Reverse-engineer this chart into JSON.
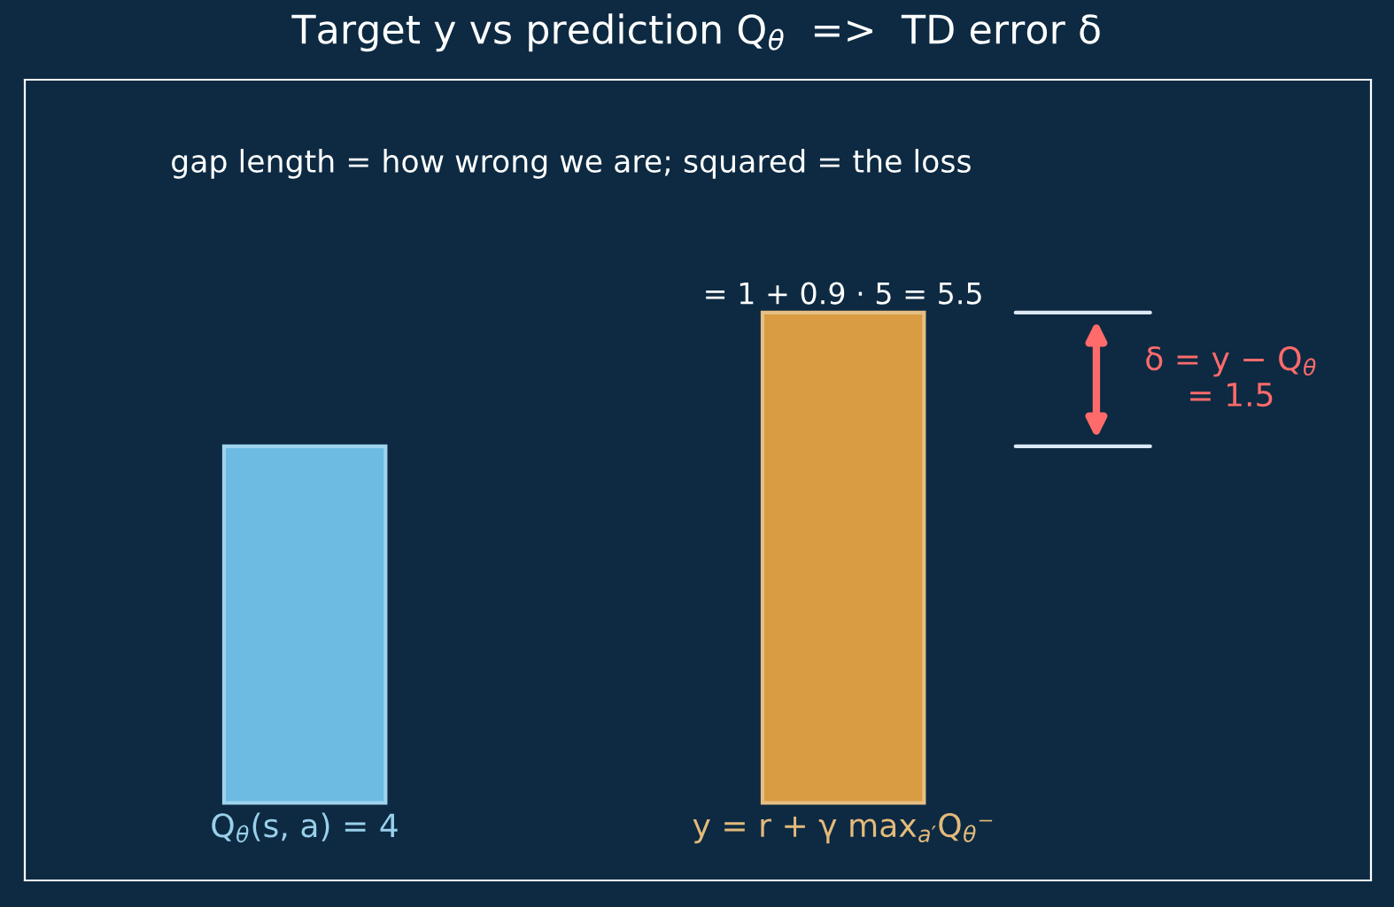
{
  "chart_data": {
    "type": "bar",
    "title": "Target y vs prediction Q$_{θ}$  =>  TD error δ",
    "categories": [
      "Q$_{θ}$(s, a) = 4",
      "y = r + γ max$_{a′}$Q$_{θ}$⁻"
    ],
    "values": [
      4,
      5.5
    ],
    "colors": [
      "#6dbbe3",
      "#d99c42"
    ],
    "value_labels": [
      null,
      "= 1 + 0.9 · 5 = 5.5"
    ],
    "annotations": [
      "gap length = how wrong we are; squared = the loss",
      "δ = y − Q$_{θ}$\n= 1.5"
    ],
    "ref_lines": [
      {
        "axis": "y",
        "value": 4,
        "color": "#dce8f5"
      },
      {
        "axis": "y",
        "value": 5.5,
        "color": "#dce8f5"
      }
    ],
    "legend": false
  }
}
